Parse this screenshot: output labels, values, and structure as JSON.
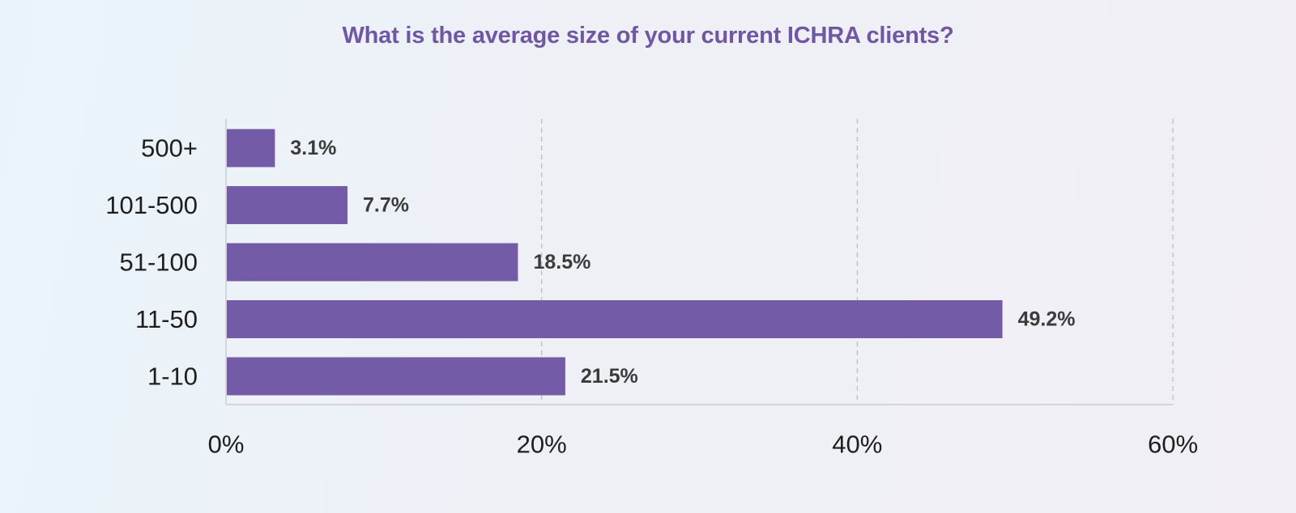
{
  "chart_data": {
    "type": "bar",
    "orientation": "horizontal",
    "title": "What is the average size of your current ICHRA clients?",
    "categories": [
      "500+",
      "101-500",
      "51-100",
      "11-50",
      "1-10"
    ],
    "values": [
      3.1,
      7.7,
      18.5,
      49.2,
      21.5
    ],
    "value_labels": [
      "3.1%",
      "7.7%",
      "18.5%",
      "49.2%",
      "21.5%"
    ],
    "xlim": [
      0,
      60
    ],
    "xticks": [
      0,
      20,
      40,
      60
    ],
    "xtick_labels": [
      "0%",
      "20%",
      "40%",
      "60%"
    ],
    "xlabel": "",
    "ylabel": "",
    "grid": "vertical dashed",
    "legend": "none",
    "colors": {
      "bar": "#745ba8",
      "title": "#6f56a7",
      "grid": "#bdbdc4",
      "axis": "#d4d4da",
      "label_text": "#1e1e1e",
      "value_text": "#3b3b3b"
    }
  }
}
